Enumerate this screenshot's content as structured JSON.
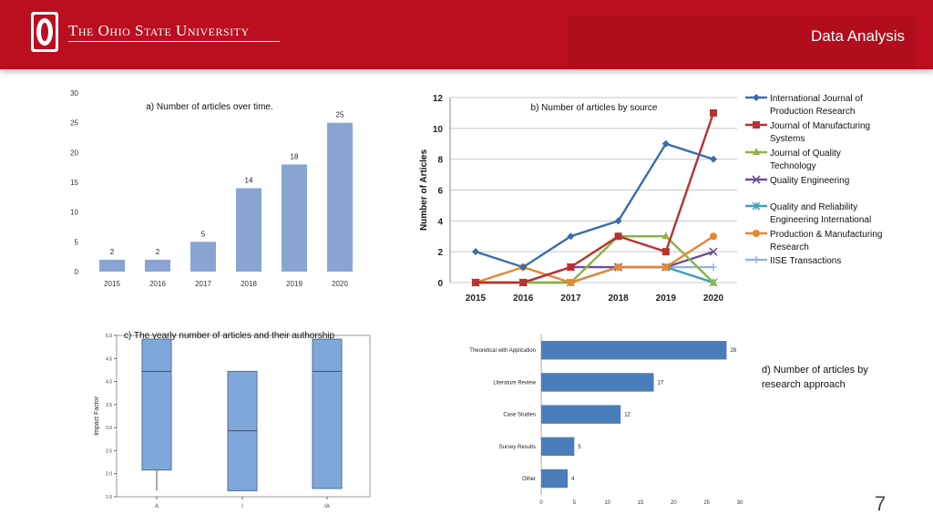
{
  "header": {
    "university": "The Ohio State University",
    "title": "Data Analysis"
  },
  "page_number": "7",
  "colors": {
    "header_red": "#bb0f1f",
    "bar_blue": "#8aa4d2",
    "bar_blue_dark": "#4a7ebb"
  },
  "chart_data": [
    {
      "type": "bar",
      "title": "a) Number of articles over time.",
      "categories": [
        "2015",
        "2016",
        "2017",
        "2018",
        "2019",
        "2020"
      ],
      "values": [
        2,
        2,
        5,
        14,
        18,
        25
      ],
      "yticks": [
        "0",
        "5",
        "10",
        "15",
        "20",
        "25",
        "30"
      ],
      "ylim": [
        0,
        30
      ]
    },
    {
      "type": "line",
      "title": "b) Number of articles by source",
      "ylabel": "Number of Articles",
      "x": [
        "2015",
        "2016",
        "2017",
        "2018",
        "2019",
        "2020"
      ],
      "yticks": [
        "0",
        "2",
        "4",
        "6",
        "8",
        "10",
        "12"
      ],
      "ylim": [
        0,
        12
      ],
      "series": [
        {
          "name": "International Journal of Production Research",
          "values": [
            2,
            1,
            3,
            4,
            9,
            8
          ],
          "color": "#3a6daa",
          "marker": "diamond"
        },
        {
          "name": "Journal of Manufacturing Systems",
          "values": [
            0,
            0,
            1,
            3,
            2,
            11
          ],
          "color": "#b83230",
          "marker": "square"
        },
        {
          "name": "Journal of Quality Technology",
          "values": [
            0,
            0,
            0,
            3,
            3,
            0
          ],
          "color": "#8db346",
          "marker": "triangle"
        },
        {
          "name": "Quality Engineering",
          "values": [
            0,
            0,
            1,
            1,
            1,
            2
          ],
          "color": "#6c4f98",
          "marker": "x"
        },
        {
          "name": "Quality and Reliability Engineering International",
          "values": [
            0,
            0,
            0,
            1,
            1,
            0
          ],
          "color": "#37a2b8",
          "marker": "star"
        },
        {
          "name": "Production & Manufacturing Research",
          "values": [
            0,
            1,
            0,
            1,
            1,
            3
          ],
          "color": "#e5882f",
          "marker": "circle"
        },
        {
          "name": "IISE Transactions",
          "values": [
            0,
            0,
            0,
            1,
            1,
            1
          ],
          "color": "#96b3da",
          "marker": "plus"
        }
      ],
      "legend": "right"
    },
    {
      "type": "box",
      "title": "c) The yearly number of articles and their authorship",
      "ylabel": "Impact Factor",
      "categories": [
        "A",
        "I",
        "IA"
      ],
      "boxes": [
        {
          "min": 1.63,
          "q1": 2.08,
          "median": 4.22,
          "q3": 4.92,
          "max": 4.92
        },
        {
          "min": 1.63,
          "q1": 1.63,
          "median": 2.93,
          "q3": 4.22,
          "max": 4.22
        },
        {
          "min": 1.68,
          "q1": 1.68,
          "median": 4.22,
          "q3": 4.92,
          "max": 4.92
        }
      ],
      "yticks": [
        "1.5",
        "2.0",
        "2.5",
        "3.0",
        "3.5",
        "4.0",
        "4.5",
        "5.0"
      ],
      "ylim": [
        1.5,
        5.0
      ]
    },
    {
      "type": "bar",
      "orientation": "horizontal",
      "title": "d) Number of articles by research approach",
      "categories": [
        "Theoretical with Application",
        "Literature Review",
        "Case Studies",
        "Survey Results",
        "Other"
      ],
      "values": [
        28,
        17,
        12,
        5,
        4
      ],
      "xticks": [
        "0",
        "5",
        "10",
        "15",
        "20",
        "25",
        "30"
      ],
      "xlim": [
        0,
        30
      ]
    }
  ]
}
